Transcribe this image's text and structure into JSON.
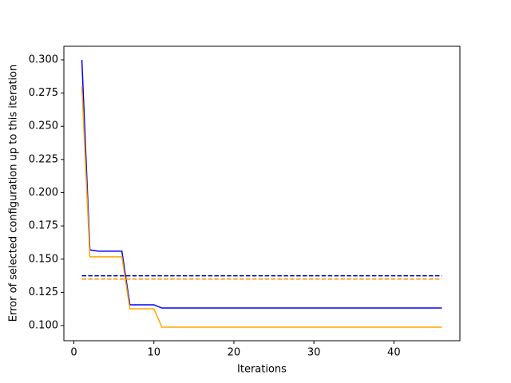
{
  "chart_data": {
    "type": "line",
    "xlabel": "Iterations",
    "ylabel": "Error of selected configuration up to this iteration",
    "x": [
      1,
      2,
      3,
      4,
      5,
      6,
      7,
      8,
      9,
      10,
      11,
      12,
      13,
      14,
      15,
      16,
      17,
      18,
      19,
      20,
      21,
      22,
      23,
      24,
      25,
      26,
      27,
      28,
      29,
      30,
      31,
      32,
      33,
      34,
      35,
      36,
      37,
      38,
      39,
      40,
      41,
      42,
      43,
      44,
      45,
      46
    ],
    "series": [
      {
        "color": "#0000ff",
        "linestyle": "solid",
        "values": [
          0.3,
          0.157,
          0.156,
          0.156,
          0.156,
          0.156,
          0.1156,
          0.1156,
          0.1156,
          0.1156,
          0.1132,
          0.1132,
          0.1132,
          0.1132,
          0.1132,
          0.1132,
          0.1132,
          0.1132,
          0.1132,
          0.1132,
          0.1132,
          0.1132,
          0.1132,
          0.1132,
          0.1132,
          0.1132,
          0.1132,
          0.1132,
          0.1132,
          0.1132,
          0.1132,
          0.1132,
          0.1132,
          0.1132,
          0.1132,
          0.1132,
          0.1132,
          0.1132,
          0.1132,
          0.1132,
          0.1132,
          0.1132,
          0.1132,
          0.1132,
          0.1132,
          0.1132
        ]
      },
      {
        "color": "#ffa500",
        "linestyle": "solid",
        "values": [
          0.28,
          0.1517,
          0.1517,
          0.1517,
          0.1517,
          0.1517,
          0.1126,
          0.1126,
          0.1126,
          0.1126,
          0.0988,
          0.0988,
          0.0988,
          0.0988,
          0.0988,
          0.0988,
          0.0988,
          0.0988,
          0.0988,
          0.0988,
          0.0988,
          0.0988,
          0.0988,
          0.0988,
          0.0988,
          0.0988,
          0.0988,
          0.0988,
          0.0988,
          0.0988,
          0.0988,
          0.0988,
          0.0988,
          0.0988,
          0.0988,
          0.0988,
          0.0988,
          0.0988,
          0.0988,
          0.0988,
          0.0988,
          0.0988,
          0.0988,
          0.0988,
          0.0988,
          0.0988
        ]
      },
      {
        "color": "#00008b",
        "linestyle": "dashed",
        "x": [
          1,
          46
        ],
        "values": [
          0.1375,
          0.1375
        ]
      },
      {
        "color": "#ff8c00",
        "linestyle": "dashed",
        "x": [
          1,
          46
        ],
        "values": [
          0.135,
          0.135
        ]
      }
    ],
    "xlim": [
      -1.25,
      48.25
    ],
    "ylim": [
      0.0886,
      0.3102
    ],
    "xticks": [
      0,
      10,
      20,
      30,
      40
    ],
    "yticks": [
      {
        "value": 0.1,
        "label": "0.100"
      },
      {
        "value": 0.125,
        "label": "0.125"
      },
      {
        "value": 0.15,
        "label": "0.150"
      },
      {
        "value": 0.175,
        "label": "0.175"
      },
      {
        "value": 0.2,
        "label": "0.200"
      },
      {
        "value": 0.225,
        "label": "0.225"
      },
      {
        "value": 0.25,
        "label": "0.250"
      },
      {
        "value": 0.275,
        "label": "0.275"
      },
      {
        "value": 0.3,
        "label": "0.300"
      }
    ]
  }
}
